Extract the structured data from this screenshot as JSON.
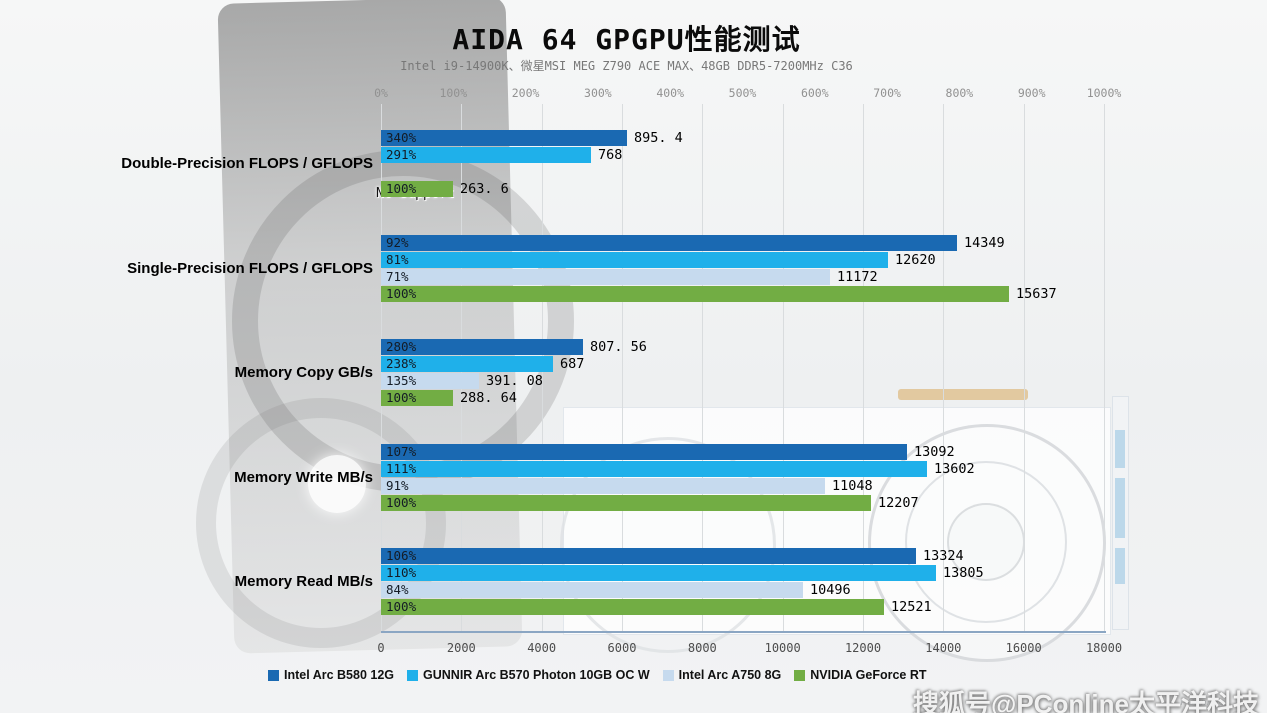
{
  "watermark": {
    "text": "搜狐号@PConline太平洋科技",
    "logo_text": "PConline"
  },
  "chart_data": {
    "type": "bar",
    "orientation": "horizontal",
    "title": "AIDA 64 GPGPU性能测试",
    "subtitle": "Intel i9-14900K、微星MSI MEG Z790 ACE MAX、48GB DDR5-7200MHz C36",
    "grid": true,
    "legend_position": "bottom",
    "top_axis": {
      "unit": "percent",
      "min": 0,
      "max": 1000,
      "step": 100,
      "ticks": [
        "0%",
        "100%",
        "200%",
        "300%",
        "400%",
        "500%",
        "600%",
        "700%",
        "800%",
        "900%",
        "1000%"
      ]
    },
    "bottom_axis": {
      "min": 0,
      "max": 18000,
      "step": 2000,
      "ticks": [
        "0",
        "2000",
        "4000",
        "6000",
        "8000",
        "10000",
        "12000",
        "14000",
        "16000",
        "18000"
      ]
    },
    "series": [
      {
        "name": "Intel Arc B580 12G",
        "color": "#1a69b2"
      },
      {
        "name": "GUNNIR Arc B570 Photon 10GB OC W",
        "color": "#1fb0ea"
      },
      {
        "name": "Intel Arc A750 8G",
        "color": "#c6daee"
      },
      {
        "name": "NVIDIA GeForce RT",
        "color": "#72ad44"
      }
    ],
    "groups": [
      {
        "category": "Double-Precision FLOPS / GFLOPS",
        "bar_scale": "top_percent",
        "bars": [
          {
            "series": 0,
            "percent": 340,
            "percent_label": "340%",
            "value_label": "895. 4"
          },
          {
            "series": 1,
            "percent": 291,
            "percent_label": "291%",
            "value_label": "768"
          },
          {
            "series": 2,
            "no_support": true,
            "note": "No Support"
          },
          {
            "series": 3,
            "percent": 100,
            "percent_label": "100%",
            "value_label": "263. 6"
          }
        ]
      },
      {
        "category": "Single-Precision FLOPS / GFLOPS",
        "bar_scale": "bottom_value",
        "bars": [
          {
            "series": 0,
            "value": 14349,
            "percent_label": "92%",
            "value_label": "14349"
          },
          {
            "series": 1,
            "value": 12620,
            "percent_label": "81%",
            "value_label": "12620"
          },
          {
            "series": 2,
            "value": 11172,
            "percent_label": "71%",
            "value_label": "11172"
          },
          {
            "series": 3,
            "value": 15637,
            "percent_label": "100%",
            "value_label": "15637"
          }
        ]
      },
      {
        "category": "Memory Copy GB/s",
        "bar_scale": "top_percent",
        "bars": [
          {
            "series": 0,
            "percent": 280,
            "percent_label": "280%",
            "value_label": "807. 56"
          },
          {
            "series": 1,
            "percent": 238,
            "percent_label": "238%",
            "value_label": "687"
          },
          {
            "series": 2,
            "percent": 135,
            "percent_label": "135%",
            "value_label": "391. 08"
          },
          {
            "series": 3,
            "percent": 100,
            "percent_label": "100%",
            "value_label": "288. 64"
          }
        ]
      },
      {
        "category": "Memory Write MB/s",
        "bar_scale": "bottom_value",
        "bars": [
          {
            "series": 0,
            "value": 13092,
            "percent_label": "107%",
            "value_label": "13092"
          },
          {
            "series": 1,
            "value": 13602,
            "percent_label": "111%",
            "value_label": "13602"
          },
          {
            "series": 2,
            "value": 11048,
            "percent_label": "91%",
            "value_label": "11048"
          },
          {
            "series": 3,
            "value": 12207,
            "percent_label": "100%",
            "value_label": "12207"
          }
        ]
      },
      {
        "category": "Memory Read MB/s",
        "bar_scale": "bottom_value",
        "bars": [
          {
            "series": 0,
            "value": 13324,
            "percent_label": "106%",
            "value_label": "13324"
          },
          {
            "series": 1,
            "value": 13805,
            "percent_label": "110%",
            "value_label": "13805"
          },
          {
            "series": 2,
            "value": 10496,
            "percent_label": "84%",
            "value_label": "10496"
          },
          {
            "series": 3,
            "value": 12521,
            "percent_label": "100%",
            "value_label": "12521"
          }
        ]
      }
    ]
  }
}
